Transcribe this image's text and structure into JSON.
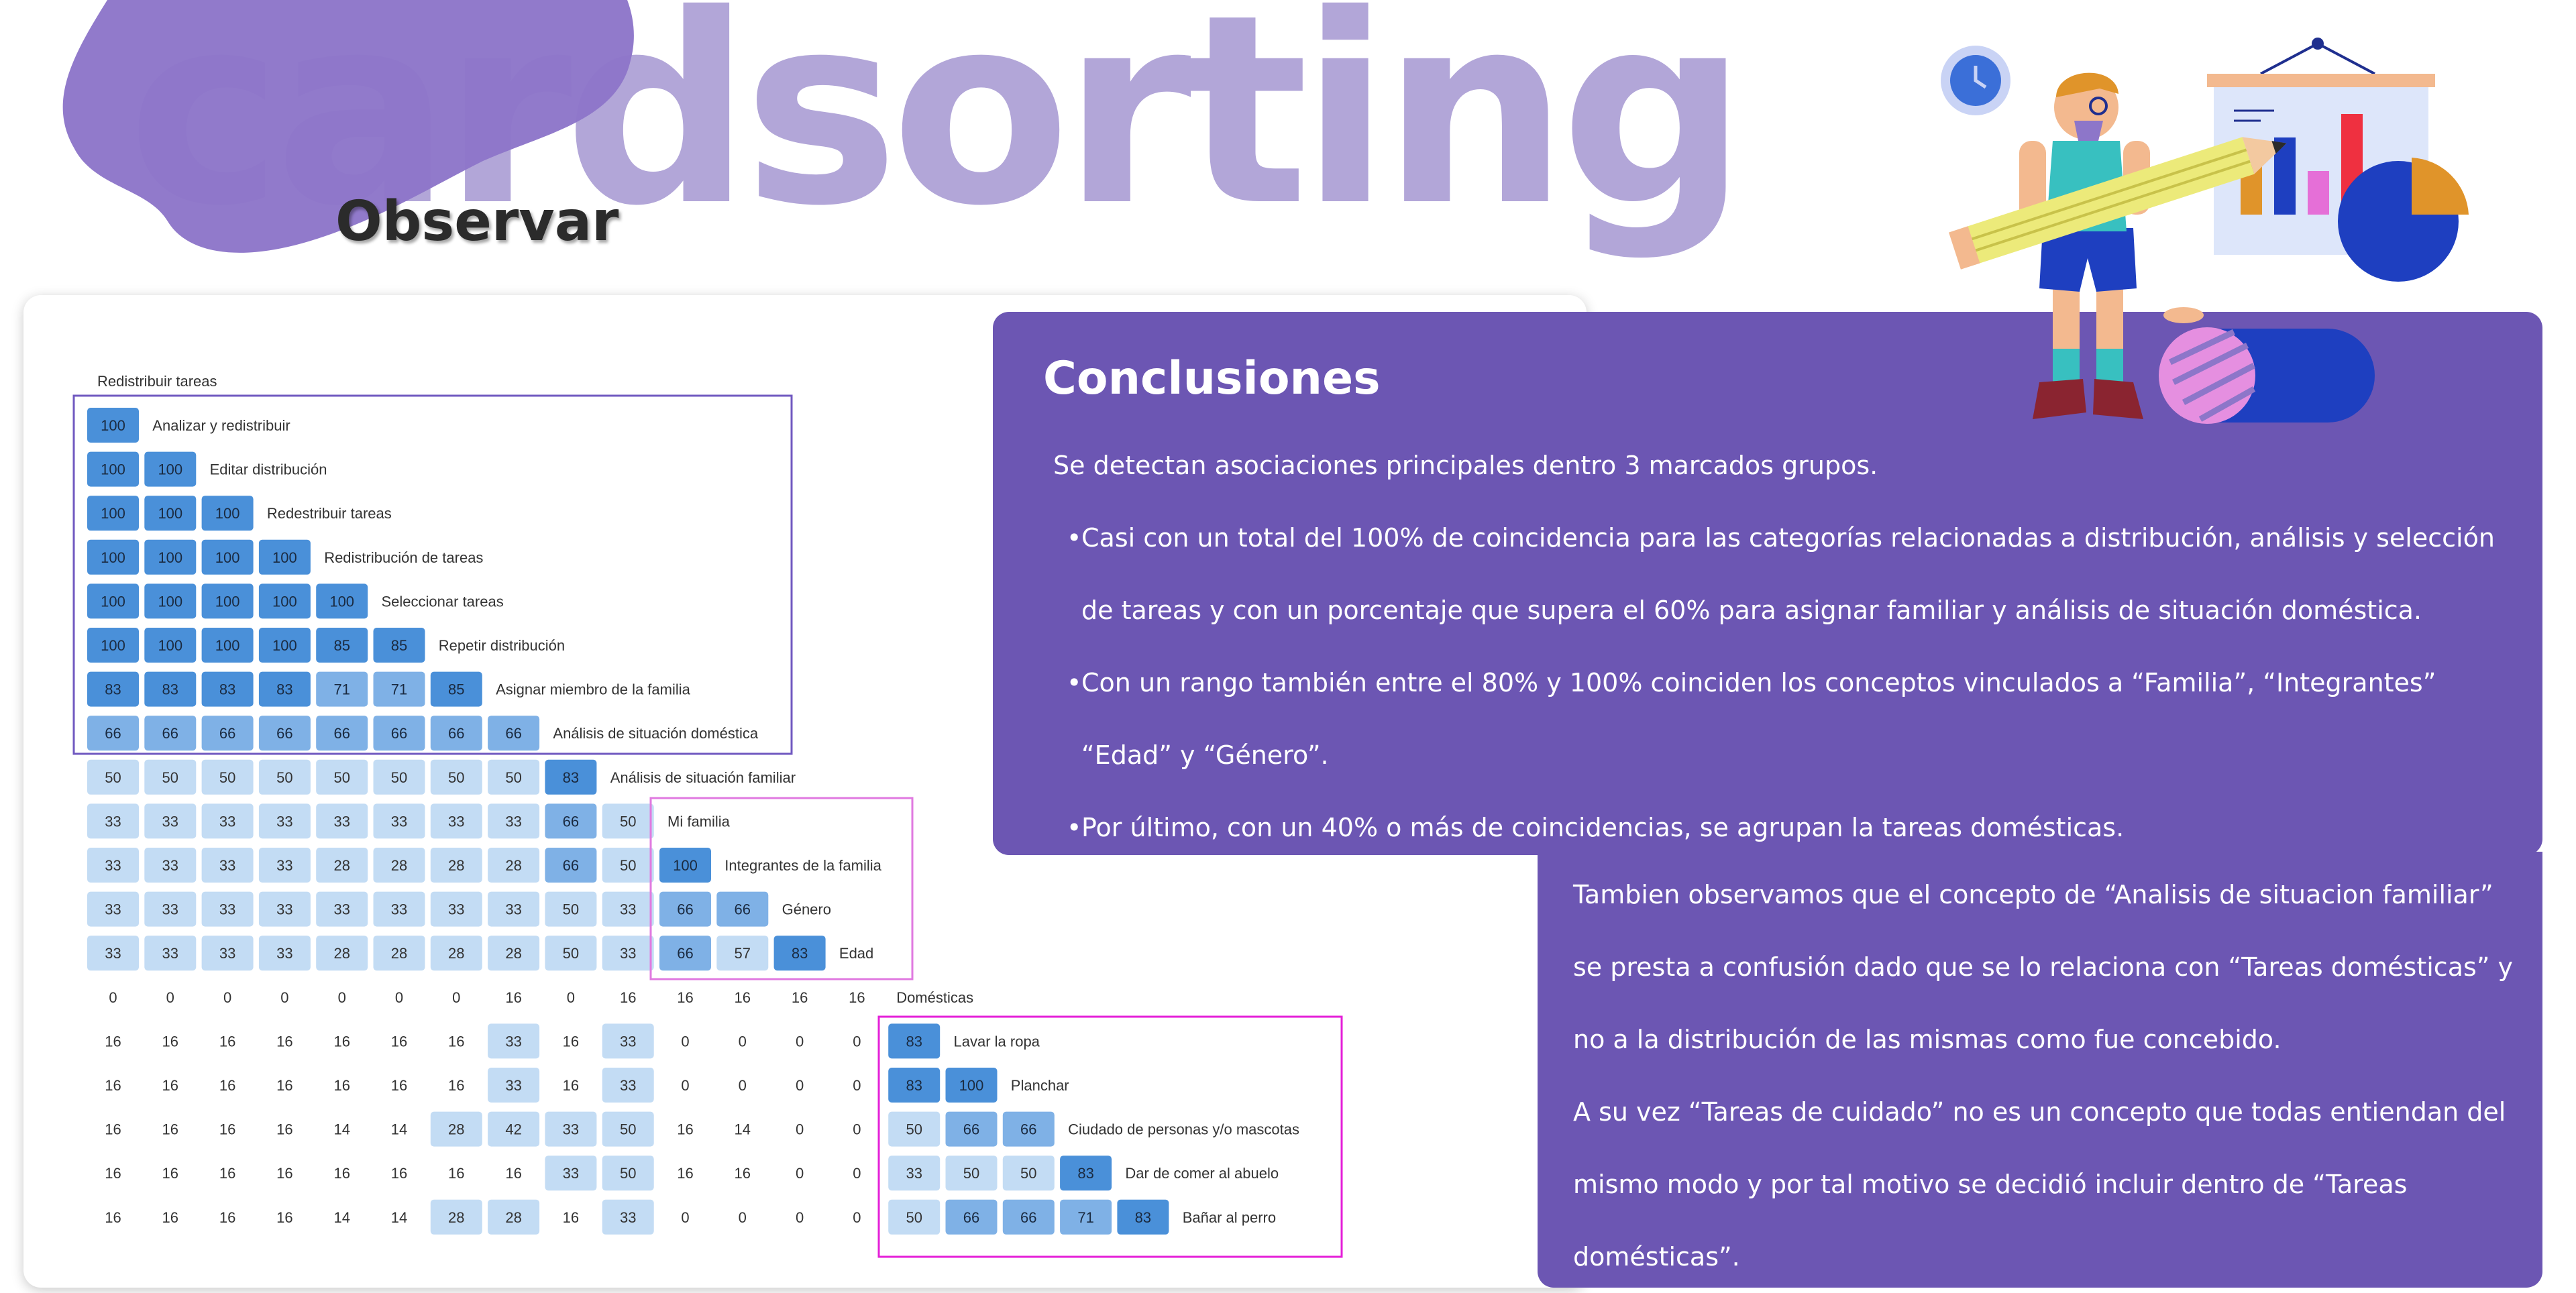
{
  "header": {
    "title": "cardsorting",
    "subtitle": "Observar"
  },
  "conclusions": {
    "title": "Conclusiones",
    "intro": "Se detectan asociaciones principales dentro 3 marcados grupos.",
    "bullets": [
      "Casi con un total del 100% de coincidencia para las categorías relacionadas a distribución, análisis y selección de tareas y con un porcentaje que supera el 60% para asignar familiar y análisis de situación doméstica.",
      "Con un rango también entre el 80% y 100% coinciden los conceptos vinculados a “Familia”, “Integrantes” “Edad” y “Género”.",
      "Por último, con un 40% o más de coincidencias, se agrupan la tareas domésticas."
    ]
  },
  "observations": [
    "Tambien observamos que el concepto de “Analisis de situacion familiar” se presta a confusión dado que se lo relaciona con “Tareas domésticas” y no a la distribución de las mismas como fue concebido.",
    "A su vez “Tareas de cuidado” no es un concepto que todas entiendan del mismo modo y por tal motivo se decidió incluir dentro de “Tareas domésticas”."
  ],
  "matrix": {
    "title": "Redistribuir tareas",
    "rows": [
      {
        "label": "Analizar y redistribuir",
        "values": [
          100
        ]
      },
      {
        "label": "Editar distribución",
        "values": [
          100,
          100
        ]
      },
      {
        "label": "Redestribuir tareas",
        "values": [
          100,
          100,
          100
        ]
      },
      {
        "label": "Redistribución de tareas",
        "values": [
          100,
          100,
          100,
          100
        ]
      },
      {
        "label": "Seleccionar tareas",
        "values": [
          100,
          100,
          100,
          100,
          100
        ]
      },
      {
        "label": "Repetir distribución",
        "values": [
          100,
          100,
          100,
          100,
          85,
          85
        ]
      },
      {
        "label": "Asignar miembro de la familia",
        "values": [
          83,
          83,
          83,
          83,
          71,
          71,
          85
        ]
      },
      {
        "label": "Análisis de situación doméstica",
        "values": [
          66,
          66,
          66,
          66,
          66,
          66,
          66,
          66
        ]
      },
      {
        "label": "Análisis de situación familiar",
        "values": [
          50,
          50,
          50,
          50,
          50,
          50,
          50,
          50,
          83
        ]
      },
      {
        "label": "Mi familia",
        "values": [
          33,
          33,
          33,
          33,
          33,
          33,
          33,
          33,
          66,
          50
        ]
      },
      {
        "label": "Integrantes de la familia",
        "values": [
          33,
          33,
          33,
          33,
          28,
          28,
          28,
          28,
          66,
          50,
          100
        ]
      },
      {
        "label": "Género",
        "values": [
          33,
          33,
          33,
          33,
          33,
          33,
          33,
          33,
          50,
          33,
          66,
          66
        ]
      },
      {
        "label": "Edad",
        "values": [
          33,
          33,
          33,
          33,
          28,
          28,
          28,
          28,
          50,
          33,
          66,
          57,
          83
        ]
      },
      {
        "label": "Domésticas",
        "values": [
          0,
          0,
          0,
          0,
          0,
          0,
          0,
          16,
          0,
          16,
          16,
          16,
          16,
          16
        ]
      },
      {
        "label": "Lavar la ropa",
        "values": [
          16,
          16,
          16,
          16,
          16,
          16,
          16,
          33,
          16,
          33,
          0,
          0,
          0,
          0,
          83
        ]
      },
      {
        "label": "Planchar",
        "values": [
          16,
          16,
          16,
          16,
          16,
          16,
          16,
          33,
          16,
          33,
          0,
          0,
          0,
          0,
          83,
          100
        ]
      },
      {
        "label": "Ciudado de personas y/o mascotas",
        "values": [
          16,
          16,
          16,
          16,
          14,
          14,
          28,
          42,
          33,
          50,
          16,
          14,
          0,
          0,
          50,
          66,
          66
        ]
      },
      {
        "label": "Dar de comer al abuelo",
        "values": [
          16,
          16,
          16,
          16,
          16,
          16,
          16,
          16,
          33,
          50,
          16,
          16,
          0,
          0,
          33,
          50,
          50,
          83
        ]
      },
      {
        "label": "Bañar al perro",
        "values": [
          16,
          16,
          16,
          16,
          14,
          14,
          28,
          28,
          16,
          33,
          0,
          0,
          0,
          0,
          50,
          66,
          66,
          71,
          83
        ]
      }
    ]
  },
  "colors": {
    "purple_panel": "#6c56b3",
    "title_lavender": "#b2a6d8",
    "blob": "#8d76c9",
    "group_box_1": "#7059c0",
    "group_box_2": "#e07ae0",
    "group_box_3": "#e41fd8",
    "cell_high": "#4a90d9",
    "cell_mid": "#7fb1e6",
    "cell_low": "#c3dcf4"
  }
}
